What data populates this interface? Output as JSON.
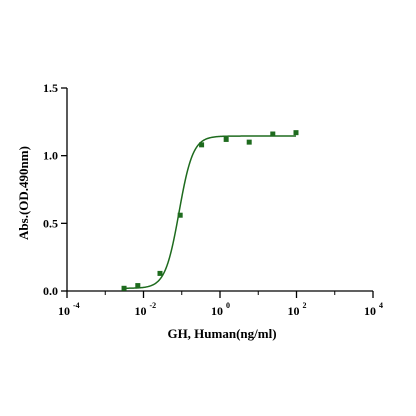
{
  "chart_data": {
    "type": "scatter",
    "title": "",
    "xlabel": "GH, Human(ng/ml)",
    "ylabel": "Abs.(OD.490nm)",
    "x_scale": "log10",
    "xlim": [
      0.0001,
      10000
    ],
    "ylim": [
      0,
      1.5
    ],
    "x_ticks": [
      {
        "value": 0.0001,
        "base": "10",
        "exp": "-4"
      },
      {
        "value": 0.01,
        "base": "10",
        "exp": "-2"
      },
      {
        "value": 1,
        "base": "10",
        "exp": "0"
      },
      {
        "value": 100,
        "base": "10",
        "exp": "2"
      },
      {
        "value": 10000,
        "base": "10",
        "exp": "4"
      }
    ],
    "y_ticks": [
      {
        "value": 0,
        "label": "0.0"
      },
      {
        "value": 0.5,
        "label": "0.5"
      },
      {
        "value": 1.0,
        "label": "1.0"
      },
      {
        "value": 1.5,
        "label": "1.5"
      }
    ],
    "grid": false,
    "legend": "none",
    "series": [
      {
        "color": "#1e6b1e",
        "points": [
          {
            "x": 0.0031,
            "y": 0.02
          },
          {
            "x": 0.0071,
            "y": 0.04
          },
          {
            "x": 0.027,
            "y": 0.13
          },
          {
            "x": 0.091,
            "y": 0.56
          },
          {
            "x": 0.33,
            "y": 1.08
          },
          {
            "x": 1.45,
            "y": 1.12
          },
          {
            "x": 5.8,
            "y": 1.1
          },
          {
            "x": 24,
            "y": 1.16
          },
          {
            "x": 97,
            "y": 1.17
          }
        ],
        "fit": {
          "model": "4PL",
          "bottom": 0.02,
          "top": 1.145,
          "ec50": 0.085,
          "hill": 2.4,
          "x_range": [
            0.0031,
            97
          ]
        }
      }
    ]
  }
}
